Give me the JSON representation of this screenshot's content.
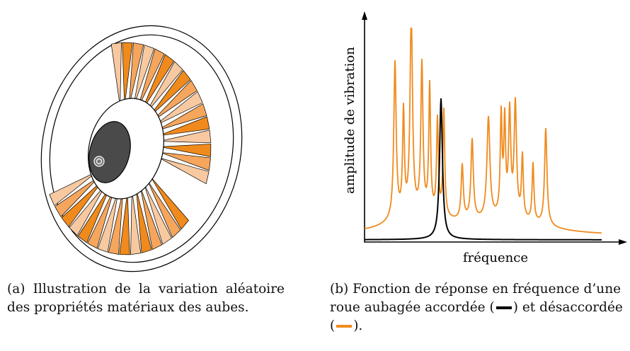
{
  "figure_a": {
    "caption": "(a) Illustration de la variation aléatoire des propriétés matériaux des aubes."
  },
  "figure_b": {
    "y_label": "amplitude de vibration",
    "x_label": "fréquence",
    "caption_parts": [
      "(b) Fonction de réponse en fréquence d’une roue aubagée accordée (",
      ") et désaccordée (",
      ")."
    ]
  }
}
